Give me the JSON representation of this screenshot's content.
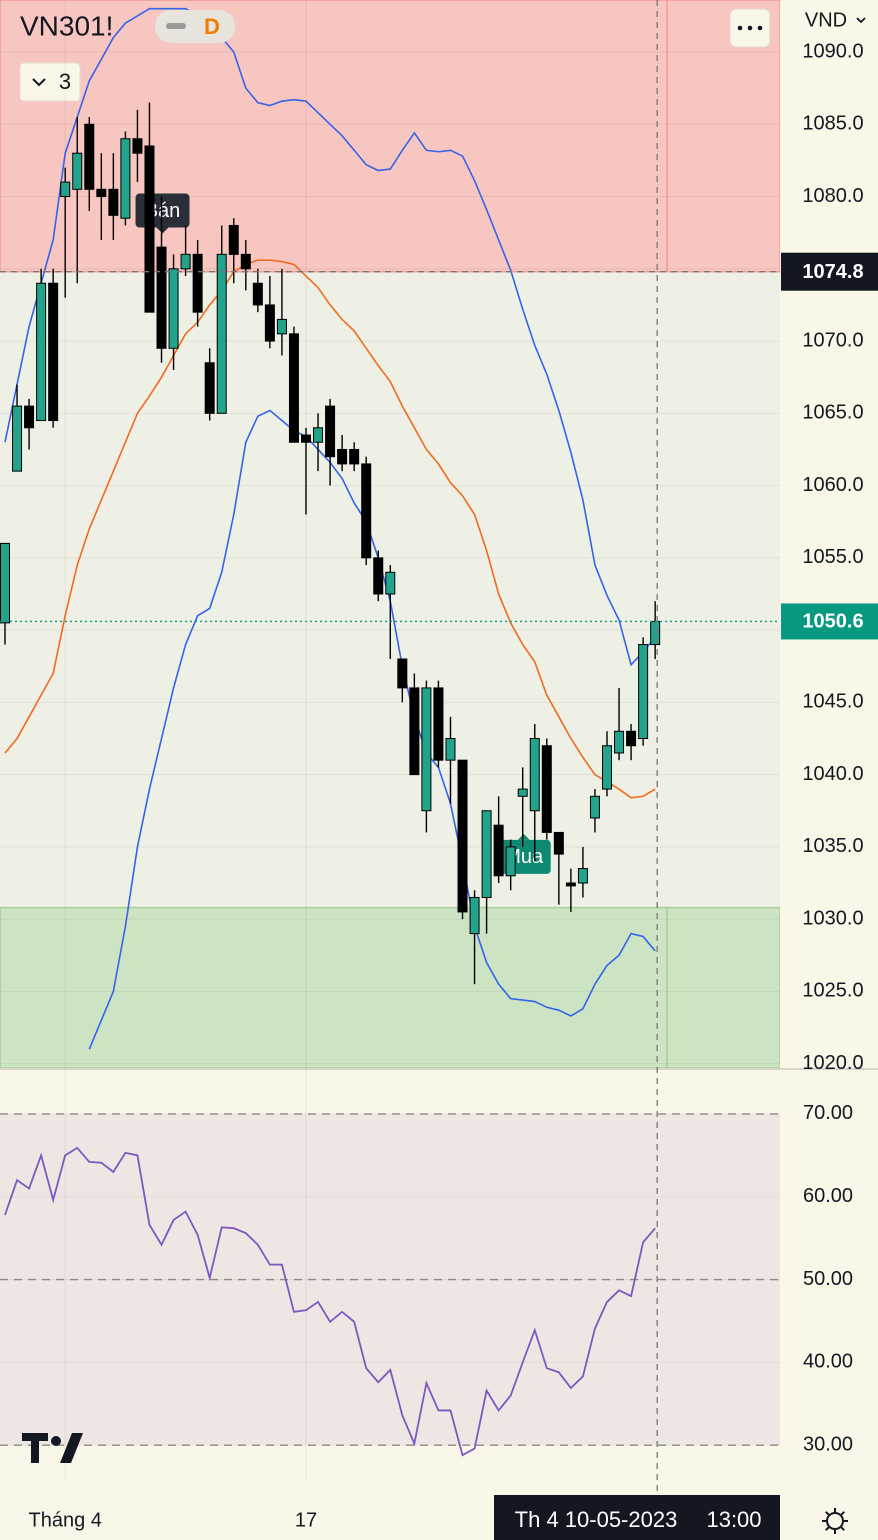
{
  "chart_data": [
    {
      "type": "candlestick",
      "title": "VN301!",
      "interval": "D",
      "indicator_count": "3",
      "currency": "VND",
      "categories": [
        null,
        null,
        null,
        null,
        null,
        "Tháng 4",
        null,
        null,
        null,
        null,
        null,
        null,
        null,
        null,
        null,
        null,
        null,
        null,
        null,
        null,
        null,
        null,
        null,
        null,
        null,
        "17",
        null,
        null,
        null,
        null,
        null,
        null,
        null,
        null,
        null,
        null,
        null,
        null,
        null,
        null,
        null,
        null,
        null,
        null,
        null,
        null,
        null,
        null,
        null,
        null,
        null,
        null,
        null,
        null,
        null
      ],
      "open": [
        1050.5,
        1061,
        1065.5,
        1064.5,
        1074,
        1080,
        1080.5,
        1085,
        1080.5,
        1080.5,
        1078.5,
        1084,
        1083.5,
        1076.5,
        1069.5,
        1075,
        1076,
        1068.5,
        1065,
        1078,
        1076,
        1074,
        1072.5,
        1070.5,
        1070.5,
        1063.5,
        1063,
        1065.5,
        1062.5,
        1062.5,
        1061.5,
        1055,
        1052.5,
        1048,
        1046,
        1037.5,
        1046,
        1041,
        1041,
        1029,
        1031.5,
        1036.5,
        1033,
        1038.5,
        1037.5,
        1042,
        1036,
        1032.5,
        1032.5,
        1037,
        1039,
        1041.5,
        1043,
        1042.5,
        1049
      ],
      "high": [
        1056,
        1067,
        1066,
        1075,
        1075,
        1082,
        1085.5,
        1085.5,
        1083,
        1083,
        1084.5,
        1086,
        1086.5,
        1080,
        1076,
        1078,
        1077,
        1069.5,
        1078,
        1078.5,
        1077,
        1075,
        1074.5,
        1075,
        1071,
        1064,
        1065,
        1066,
        1063.5,
        1063,
        1062,
        1055.5,
        1054.5,
        1048,
        1047,
        1046.5,
        1046.5,
        1044,
        1041,
        1032,
        1037.5,
        1038.5,
        1035.5,
        1040.5,
        1043.5,
        1042.5,
        1036,
        1033.5,
        1035,
        1039,
        1043,
        1046,
        1043.5,
        1049.5,
        1052
      ],
      "low": [
        1049,
        1061,
        1062.5,
        1064.5,
        1064,
        1073,
        1074,
        1079,
        1077,
        1077,
        1078,
        1081,
        1072,
        1068.5,
        1068,
        1074.5,
        1071,
        1064.5,
        1065,
        1074,
        1073.5,
        1072,
        1069.5,
        1069,
        1063,
        1058,
        1061,
        1060,
        1061,
        1061,
        1054.5,
        1052,
        1048,
        1045,
        1040,
        1036,
        1040.5,
        1038,
        1030,
        1025.5,
        1029,
        1032.5,
        1032,
        1035,
        1034,
        1035.5,
        1031,
        1030.5,
        1031.5,
        1036,
        1038.5,
        1041,
        1041,
        1042,
        1048
      ],
      "close": [
        1056,
        1065.5,
        1064,
        1074,
        1064.5,
        1081,
        1083,
        1080.5,
        1080,
        1078.7,
        1084,
        1083,
        1072,
        1069.5,
        1075,
        1076,
        1072,
        1065,
        1076,
        1076,
        1075,
        1072.5,
        1070,
        1071.5,
        1063,
        1063,
        1064,
        1062,
        1061.5,
        1061.5,
        1055,
        1052.5,
        1054,
        1046,
        1040,
        1046,
        1041,
        1042.5,
        1030.5,
        1031.5,
        1037.5,
        1033,
        1035,
        1039,
        1042.5,
        1036,
        1034.5,
        1032.3,
        1033.5,
        1038.5,
        1042,
        1043,
        1042,
        1049,
        1050.6
      ],
      "up_color": "#22a38c",
      "down_color": "#000000",
      "bands": [
        {
          "color": "#3563e9",
          "values": [
            1063,
            1067,
            1071,
            1074,
            1077,
            1083,
            1085.5,
            1088,
            1089.5,
            1091,
            1092,
            1092.5,
            1093,
            1093,
            1093,
            1093,
            1092.5,
            1092,
            1091,
            1090,
            1087.5,
            1086.5,
            1086.3,
            1086.6,
            1086.7,
            1086.6,
            1085.8,
            1085,
            1084.2,
            1083.2,
            1082.2,
            1081.8,
            1081.9,
            1083.2,
            1084.4,
            1083.2,
            1083.1,
            1083.2,
            1082.8,
            1081.1,
            1079.1,
            1077,
            1074.9,
            1072.2,
            1069.7,
            1067.7,
            1065.2,
            1062.3,
            1059,
            1054.5,
            1052.4,
            1050.7,
            1047.6,
            1048.5,
            1049.5
          ]
        },
        {
          "color": "#f26a1b",
          "values": [
            1041.5,
            1042.5,
            1044,
            1045.5,
            1047,
            1051,
            1054.5,
            1057,
            1059,
            1061,
            1063,
            1065,
            1066.2,
            1067.5,
            1069,
            1070.5,
            1071.3,
            1072.5,
            1073.5,
            1074.8,
            1075.3,
            1075.6,
            1075.6,
            1075.5,
            1075.3,
            1074.5,
            1073.7,
            1072.5,
            1071.5,
            1070.7,
            1069.5,
            1068.3,
            1067.2,
            1065.5,
            1064,
            1062.5,
            1061.5,
            1060.2,
            1059.3,
            1058,
            1055.5,
            1052.5,
            1050.5,
            1049,
            1047.8,
            1045.5,
            1044,
            1042.5,
            1041.2,
            1040,
            1039.5,
            1039,
            1038.4,
            1038.5,
            1039
          ]
        },
        {
          "color": "#3563e9",
          "values": [
            null,
            null,
            null,
            null,
            null,
            null,
            null,
            1021,
            1023,
            1025,
            1029.5,
            1035,
            1039,
            1042.5,
            1046,
            1049,
            1051,
            1051.5,
            1054,
            1058,
            1063,
            1064.8,
            1065.2,
            1064.5,
            1063.8,
            1063.4,
            1062.5,
            1061.6,
            1060.5,
            1058.8,
            1057.5,
            1055,
            1052,
            1047.5,
            1044,
            1041.5,
            1040.5,
            1038,
            1034,
            1029.5,
            1027,
            1025.5,
            1024.5,
            1024.4,
            1024.3,
            1023.9,
            1023.7,
            1023.3,
            1023.8,
            1025.5,
            1026.8,
            1027.5,
            1029,
            1028.8,
            1027.8
          ]
        }
      ],
      "zones": [
        {
          "from": 1074.8,
          "to": 1093.6,
          "color": "#f7c6c0",
          "border": "#ef9a93"
        },
        {
          "from": 1019.7,
          "to": 1030.8,
          "color": "#cce4c4",
          "border": "#a6d098"
        }
      ],
      "annotations": [
        {
          "text": "Bán",
          "index": 13,
          "color": "#2a2e39",
          "side": "above"
        },
        {
          "text": "Mua",
          "index": 43,
          "color": "#0f8a72",
          "side": "below"
        }
      ],
      "last_price": 1050.6,
      "last_price_color": "#089981",
      "crosshair_price": 1074.8,
      "crosshair_date": "Th 4 10-05-2023",
      "crosshair_time": "13:00",
      "ylim": [
        1019.7,
        1093.6
      ],
      "yticks": [
        {
          "value": 1020,
          "label": "1020.0"
        },
        {
          "value": 1025,
          "label": "1025.0"
        },
        {
          "value": 1030,
          "label": "1030.0"
        },
        {
          "value": 1035,
          "label": "1035.0"
        },
        {
          "value": 1040,
          "label": "1040.0"
        },
        {
          "value": 1045,
          "label": "1045.0"
        },
        {
          "value": 1050,
          "label": "1050.0"
        },
        {
          "value": 1055,
          "label": "1055.0"
        },
        {
          "value": 1060,
          "label": "1060.0"
        },
        {
          "value": 1065,
          "label": "1065.0"
        },
        {
          "value": 1070,
          "label": "1070.0"
        },
        {
          "value": 1075,
          "label": "1075.0"
        },
        {
          "value": 1080,
          "label": "1080.0"
        },
        {
          "value": 1085,
          "label": "1085.0"
        },
        {
          "value": 1090,
          "label": "1090.0"
        }
      ],
      "grid": true
    },
    {
      "type": "line",
      "color": "#7e57c2",
      "values": [
        57.8,
        62,
        61,
        65,
        59.6,
        65,
        65.9,
        64.2,
        64.1,
        63,
        65.3,
        65,
        56.6,
        54.2,
        57.2,
        58.2,
        55.4,
        50.2,
        56.3,
        56.2,
        55.6,
        54.2,
        51.8,
        51.8,
        46.1,
        46.3,
        47.3,
        44.9,
        46.1,
        44.9,
        39.3,
        37.6,
        39.1,
        33.6,
        30.2,
        37.5,
        34.2,
        34.2,
        28.8,
        29.6,
        36.6,
        34.2,
        36,
        40,
        43.9,
        39.3,
        38.8,
        36.9,
        38.3,
        44.1,
        47.3,
        48.7,
        48,
        54.5,
        56.2
      ],
      "levels": [
        30,
        50,
        70
      ],
      "band_color": "#ede6e2",
      "ylim": [
        25.8,
        75.3
      ],
      "yticks": [
        {
          "value": 30,
          "label": "30.00"
        },
        {
          "value": 40,
          "label": "40.00"
        },
        {
          "value": 50,
          "label": "50.00"
        },
        {
          "value": 60,
          "label": "60.00"
        },
        {
          "value": 70,
          "label": "70.00"
        }
      ],
      "grid": true
    }
  ]
}
